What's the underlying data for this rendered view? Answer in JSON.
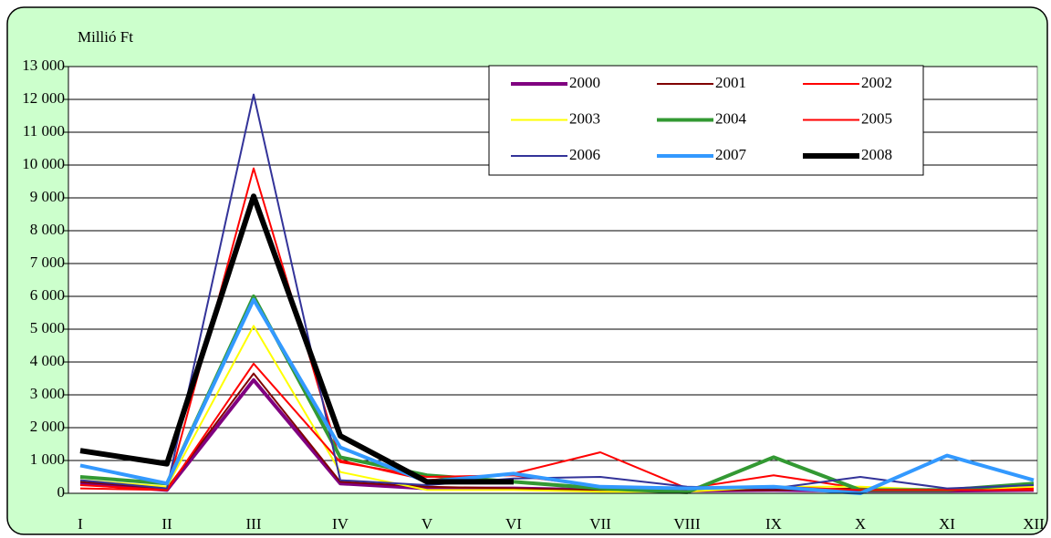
{
  "chart_data": {
    "type": "line",
    "y_label": "Millió Ft",
    "categories": [
      "I",
      "II",
      "III",
      "IV",
      "V",
      "VI",
      "VII",
      "VIII",
      "IX",
      "X",
      "XI",
      "XII"
    ],
    "ylim": [
      0,
      13000
    ],
    "yticks": [
      0,
      {
        "value": 1000,
        "label": "1 000"
      },
      {
        "value": 2000,
        "label": "2 000"
      },
      {
        "value": 3000,
        "label": "3 000"
      },
      {
        "value": 4000,
        "label": "4 000"
      },
      {
        "value": 5000,
        "label": "5 000"
      },
      {
        "value": 6000,
        "label": "6 000"
      },
      {
        "value": 7000,
        "label": "7 000"
      },
      {
        "value": 8000,
        "label": "8 000"
      },
      {
        "value": 9000,
        "label": "9 000"
      },
      {
        "value": 10000,
        "label": "10 000"
      },
      {
        "value": 11000,
        "label": "11 000"
      },
      {
        "value": 12000,
        "label": "12 000"
      },
      {
        "value": 13000,
        "label": "13 000"
      }
    ],
    "grid": true,
    "legend": "upper right",
    "series": [
      {
        "name": "2000",
        "color": "#800080",
        "line_width": 4,
        "values": [
          300,
          100,
          3450,
          300,
          150,
          150,
          100,
          80,
          100,
          80,
          80,
          100
        ]
      },
      {
        "name": "2001",
        "color": "#800000",
        "line_width": 2,
        "values": [
          350,
          150,
          3650,
          350,
          200,
          150,
          100,
          100,
          100,
          150,
          120,
          300
        ]
      },
      {
        "name": "2002",
        "color": "#ff0000",
        "line_width": 2,
        "values": [
          150,
          100,
          9900,
          1000,
          400,
          600,
          1250,
          150,
          550,
          150,
          100,
          150
        ]
      },
      {
        "name": "2003",
        "color": "#ffff00",
        "line_width": 2,
        "values": [
          400,
          200,
          5100,
          650,
          100,
          100,
          50,
          50,
          200,
          200,
          100,
          200
        ]
      },
      {
        "name": "2004",
        "color": "#339933",
        "line_width": 4,
        "values": [
          500,
          300,
          6000,
          1100,
          550,
          350,
          150,
          30,
          1100,
          100,
          100,
          300
        ]
      },
      {
        "name": "2005",
        "color": "#ff0000",
        "line_width": 2,
        "values": [
          250,
          100,
          3950,
          950,
          500,
          550,
          200,
          150,
          200,
          100,
          100,
          100
        ]
      },
      {
        "name": "2006",
        "color": "#333399",
        "line_width": 2,
        "values": [
          400,
          150,
          12150,
          400,
          250,
          450,
          500,
          200,
          150,
          500,
          150,
          250
        ]
      },
      {
        "name": "2007",
        "color": "#3399ff",
        "line_width": 4,
        "values": [
          850,
          300,
          5900,
          1400,
          350,
          600,
          200,
          150,
          200,
          0,
          1150,
          400
        ]
      },
      {
        "name": "2008",
        "color": "#000000",
        "line_width": 6,
        "values": [
          1300,
          900,
          9050,
          1750,
          350,
          350,
          null,
          null,
          null,
          null,
          null,
          null
        ]
      }
    ]
  }
}
